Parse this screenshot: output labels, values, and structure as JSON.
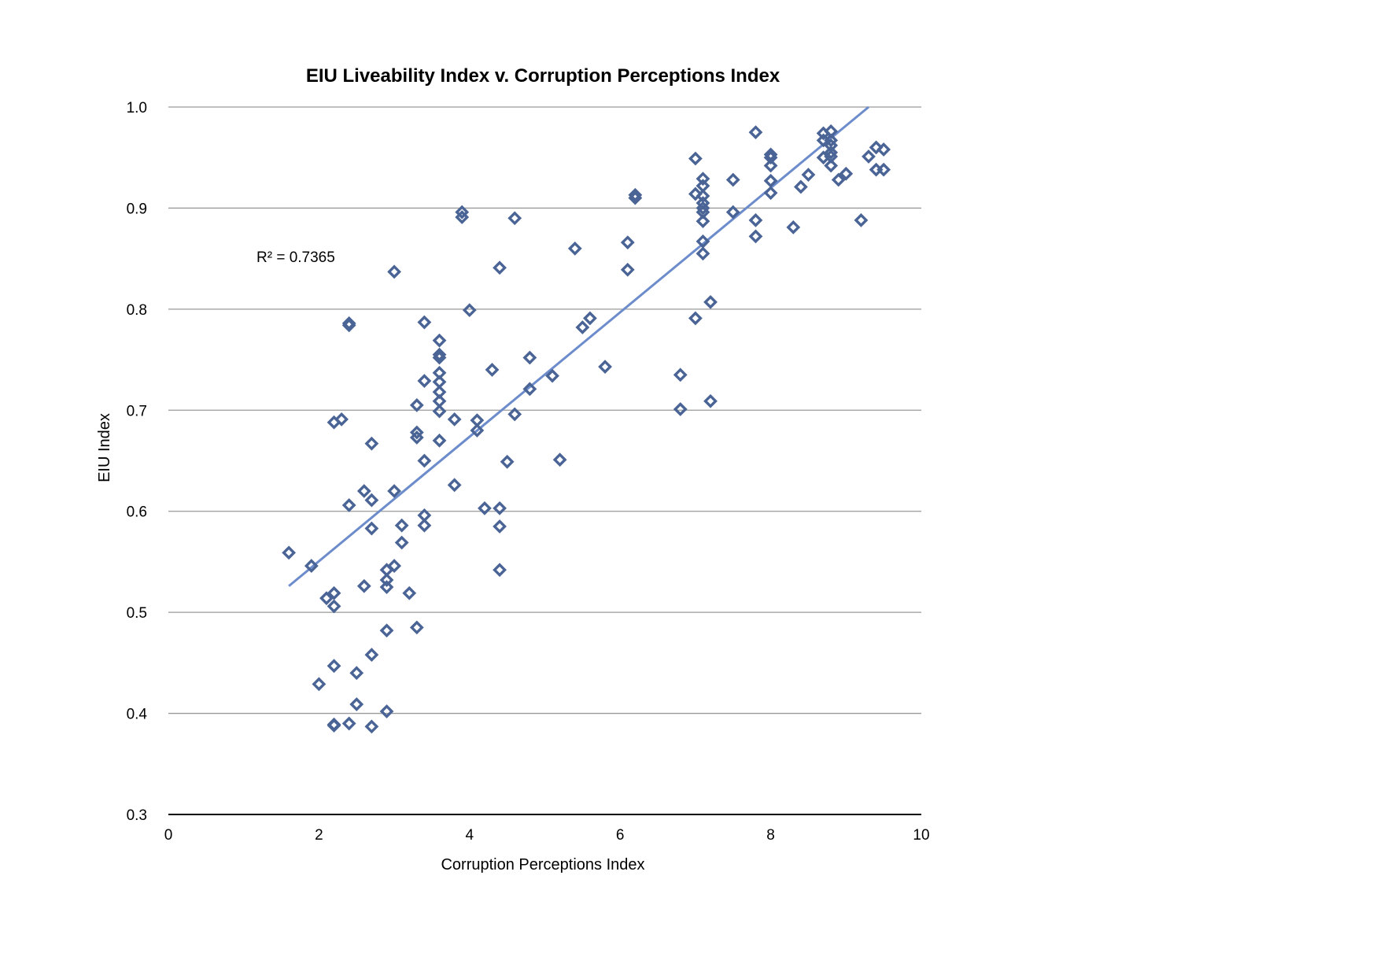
{
  "chart_data": {
    "type": "scatter",
    "title": "EIU Liveability Index v. Corruption Perceptions Index",
    "xlabel": "Corruption Perceptions Index",
    "ylabel": "EIU Index",
    "xlim": [
      0,
      10
    ],
    "ylim": [
      0.3,
      1.0
    ],
    "xticks": [
      "0",
      "2",
      "4",
      "6",
      "8",
      "10"
    ],
    "yticks": [
      "0.3",
      "0.4",
      "0.5",
      "0.6",
      "0.7",
      "0.8",
      "0.9",
      "1.0"
    ],
    "grid": true,
    "legend": "none",
    "marker_color": "#4a6496",
    "trendline_color": "#6d8ccc",
    "annotation": "R² = 0.7365",
    "trendline": {
      "x": [
        1.6,
        9.3
      ],
      "y": [
        0.526,
        1.0
      ]
    },
    "points": [
      [
        1.6,
        0.559
      ],
      [
        1.9,
        0.546
      ],
      [
        2.0,
        0.429
      ],
      [
        2.1,
        0.514
      ],
      [
        2.2,
        0.519
      ],
      [
        2.2,
        0.506
      ],
      [
        2.2,
        0.447
      ],
      [
        2.2,
        0.389
      ],
      [
        2.2,
        0.388
      ],
      [
        2.2,
        0.688
      ],
      [
        2.3,
        0.691
      ],
      [
        2.4,
        0.784
      ],
      [
        2.4,
        0.786
      ],
      [
        2.4,
        0.606
      ],
      [
        2.4,
        0.39
      ],
      [
        2.5,
        0.44
      ],
      [
        2.5,
        0.409
      ],
      [
        2.6,
        0.62
      ],
      [
        2.6,
        0.526
      ],
      [
        2.7,
        0.611
      ],
      [
        2.7,
        0.583
      ],
      [
        2.7,
        0.667
      ],
      [
        2.7,
        0.458
      ],
      [
        2.7,
        0.387
      ],
      [
        2.9,
        0.542
      ],
      [
        2.9,
        0.532
      ],
      [
        2.9,
        0.525
      ],
      [
        2.9,
        0.482
      ],
      [
        2.9,
        0.402
      ],
      [
        3.0,
        0.837
      ],
      [
        3.0,
        0.62
      ],
      [
        3.0,
        0.546
      ],
      [
        3.1,
        0.586
      ],
      [
        3.1,
        0.569
      ],
      [
        3.2,
        0.519
      ],
      [
        3.3,
        0.705
      ],
      [
        3.3,
        0.678
      ],
      [
        3.3,
        0.673
      ],
      [
        3.3,
        0.485
      ],
      [
        3.4,
        0.787
      ],
      [
        3.4,
        0.729
      ],
      [
        3.4,
        0.65
      ],
      [
        3.4,
        0.596
      ],
      [
        3.4,
        0.586
      ],
      [
        3.6,
        0.769
      ],
      [
        3.6,
        0.755
      ],
      [
        3.6,
        0.752
      ],
      [
        3.6,
        0.737
      ],
      [
        3.6,
        0.728
      ],
      [
        3.6,
        0.718
      ],
      [
        3.6,
        0.709
      ],
      [
        3.6,
        0.699
      ],
      [
        3.6,
        0.67
      ],
      [
        3.8,
        0.691
      ],
      [
        3.8,
        0.626
      ],
      [
        3.9,
        0.896
      ],
      [
        3.9,
        0.891
      ],
      [
        4.0,
        0.799
      ],
      [
        4.1,
        0.69
      ],
      [
        4.1,
        0.68
      ],
      [
        4.2,
        0.603
      ],
      [
        4.3,
        0.74
      ],
      [
        4.4,
        0.841
      ],
      [
        4.4,
        0.603
      ],
      [
        4.4,
        0.585
      ],
      [
        4.4,
        0.542
      ],
      [
        4.5,
        0.649
      ],
      [
        4.6,
        0.89
      ],
      [
        4.6,
        0.696
      ],
      [
        4.8,
        0.752
      ],
      [
        4.8,
        0.721
      ],
      [
        5.1,
        0.734
      ],
      [
        5.2,
        0.651
      ],
      [
        5.4,
        0.86
      ],
      [
        5.5,
        0.782
      ],
      [
        5.6,
        0.791
      ],
      [
        5.8,
        0.743
      ],
      [
        6.1,
        0.866
      ],
      [
        6.1,
        0.839
      ],
      [
        6.2,
        0.913
      ],
      [
        6.2,
        0.91
      ],
      [
        6.8,
        0.735
      ],
      [
        6.8,
        0.701
      ],
      [
        7.0,
        0.949
      ],
      [
        7.0,
        0.914
      ],
      [
        7.0,
        0.791
      ],
      [
        7.1,
        0.929
      ],
      [
        7.1,
        0.922
      ],
      [
        7.1,
        0.912
      ],
      [
        7.1,
        0.905
      ],
      [
        7.1,
        0.9
      ],
      [
        7.1,
        0.896
      ],
      [
        7.1,
        0.887
      ],
      [
        7.1,
        0.867
      ],
      [
        7.1,
        0.855
      ],
      [
        7.2,
        0.807
      ],
      [
        7.2,
        0.709
      ],
      [
        7.5,
        0.928
      ],
      [
        7.5,
        0.896
      ],
      [
        7.8,
        0.975
      ],
      [
        7.8,
        0.888
      ],
      [
        7.8,
        0.872
      ],
      [
        8.0,
        0.953
      ],
      [
        8.0,
        0.95
      ],
      [
        8.0,
        0.942
      ],
      [
        8.0,
        0.927
      ],
      [
        8.0,
        0.915
      ],
      [
        8.3,
        0.881
      ],
      [
        8.4,
        0.921
      ],
      [
        8.5,
        0.933
      ],
      [
        8.7,
        0.974
      ],
      [
        8.7,
        0.967
      ],
      [
        8.7,
        0.95
      ],
      [
        8.8,
        0.976
      ],
      [
        8.8,
        0.967
      ],
      [
        8.8,
        0.962
      ],
      [
        8.8,
        0.955
      ],
      [
        8.8,
        0.951
      ],
      [
        8.8,
        0.942
      ],
      [
        8.9,
        0.928
      ],
      [
        9.0,
        0.934
      ],
      [
        9.2,
        0.888
      ],
      [
        9.3,
        0.951
      ],
      [
        9.4,
        0.96
      ],
      [
        9.4,
        0.938
      ],
      [
        9.5,
        0.958
      ],
      [
        9.5,
        0.938
      ]
    ]
  }
}
